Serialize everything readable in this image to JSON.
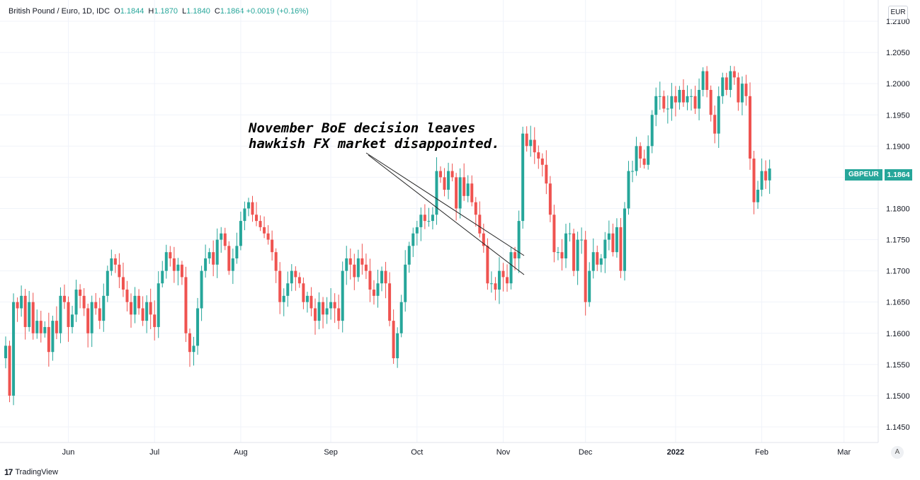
{
  "header": {
    "symbol": "British Pound / Euro, 1D, IDC",
    "o_label": "O",
    "o_value": "1.1844",
    "h_label": "H",
    "h_value": "1.1870",
    "l_label": "L",
    "l_value": "1.1840",
    "c_label": "C",
    "c_value": "1.1864",
    "change": "+0.0019 (+0.16%)"
  },
  "currency": "EUR",
  "ticker": "GBPEUR",
  "last_price": "1.1864",
  "auto_label": "A",
  "brand": "TradingView",
  "annotation": {
    "line1": "November BoE decision leaves",
    "line2": "hawkish FX market disappointed."
  },
  "colors": {
    "up": "#26a69a",
    "down": "#ef5350",
    "grid": "#f0f3fa",
    "text": "#131722"
  },
  "chart_data": {
    "type": "candlestick",
    "y_ticks": [
      "1.2100",
      "1.2050",
      "1.2000",
      "1.1950",
      "1.1900",
      "1.1850",
      "1.1800",
      "1.1750",
      "1.1700",
      "1.1650",
      "1.1600",
      "1.1550",
      "1.1500",
      "1.1450"
    ],
    "ylim": [
      1.1425,
      1.2125
    ],
    "x_ticks": [
      "Jun",
      "Jul",
      "Aug",
      "Sep",
      "Oct",
      "Nov",
      "Dec",
      "2022",
      "Feb",
      "Mar"
    ],
    "x_tick_bold": [
      "2022"
    ],
    "x_tick_index": [
      16,
      38,
      60,
      83,
      105,
      127,
      148,
      171,
      193,
      214
    ],
    "x_range": [
      0,
      222
    ],
    "closes": [
      1.158,
      1.15,
      1.165,
      1.164,
      1.166,
      1.161,
      1.165,
      1.16,
      1.162,
      1.16,
      1.161,
      1.157,
      1.162,
      1.16,
      1.166,
      1.165,
      1.161,
      1.163,
      1.167,
      1.166,
      1.164,
      1.16,
      1.165,
      1.164,
      1.162,
      1.166,
      1.17,
      1.172,
      1.171,
      1.169,
      1.167,
      1.165,
      1.163,
      1.166,
      1.164,
      1.162,
      1.165,
      1.163,
      1.161,
      1.168,
      1.17,
      1.173,
      1.172,
      1.17,
      1.171,
      1.169,
      1.16,
      1.157,
      1.158,
      1.164,
      1.17,
      1.172,
      1.173,
      1.171,
      1.175,
      1.176,
      1.174,
      1.17,
      1.172,
      1.174,
      1.178,
      1.18,
      1.181,
      1.179,
      1.178,
      1.177,
      1.176,
      1.175,
      1.173,
      1.17,
      1.165,
      1.166,
      1.168,
      1.17,
      1.169,
      1.168,
      1.165,
      1.166,
      1.164,
      1.162,
      1.165,
      1.163,
      1.164,
      1.165,
      1.164,
      1.162,
      1.17,
      1.172,
      1.171,
      1.169,
      1.172,
      1.171,
      1.17,
      1.167,
      1.166,
      1.168,
      1.17,
      1.168,
      1.162,
      1.156,
      1.16,
      1.165,
      1.171,
      1.174,
      1.176,
      1.177,
      1.179,
      1.178,
      1.178,
      1.179,
      1.186,
      1.185,
      1.183,
      1.186,
      1.185,
      1.18,
      1.185,
      1.182,
      1.184,
      1.181,
      1.179,
      1.176,
      1.174,
      1.168,
      1.168,
      1.167,
      1.17,
      1.169,
      1.168,
      1.173,
      1.172,
      1.178,
      1.192,
      1.19,
      1.191,
      1.189,
      1.188,
      1.187,
      1.184,
      1.179,
      1.173,
      1.173,
      1.172,
      1.176,
      1.176,
      1.17,
      1.175,
      1.175,
      1.165,
      1.17,
      1.173,
      1.171,
      1.172,
      1.175,
      1.176,
      1.173,
      1.177,
      1.17,
      1.18,
      1.186,
      1.186,
      1.19,
      1.188,
      1.187,
      1.19,
      1.195,
      1.198,
      1.198,
      1.196,
      1.196,
      1.198,
      1.197,
      1.199,
      1.197,
      1.198,
      1.198,
      1.196,
      1.199,
      1.202,
      1.199,
      1.195,
      1.192,
      1.198,
      1.201,
      1.199,
      1.202,
      1.201,
      1.197,
      1.2,
      1.198,
      1.188,
      1.181,
      1.183,
      1.186,
      1.1845,
      1.1864
    ]
  }
}
